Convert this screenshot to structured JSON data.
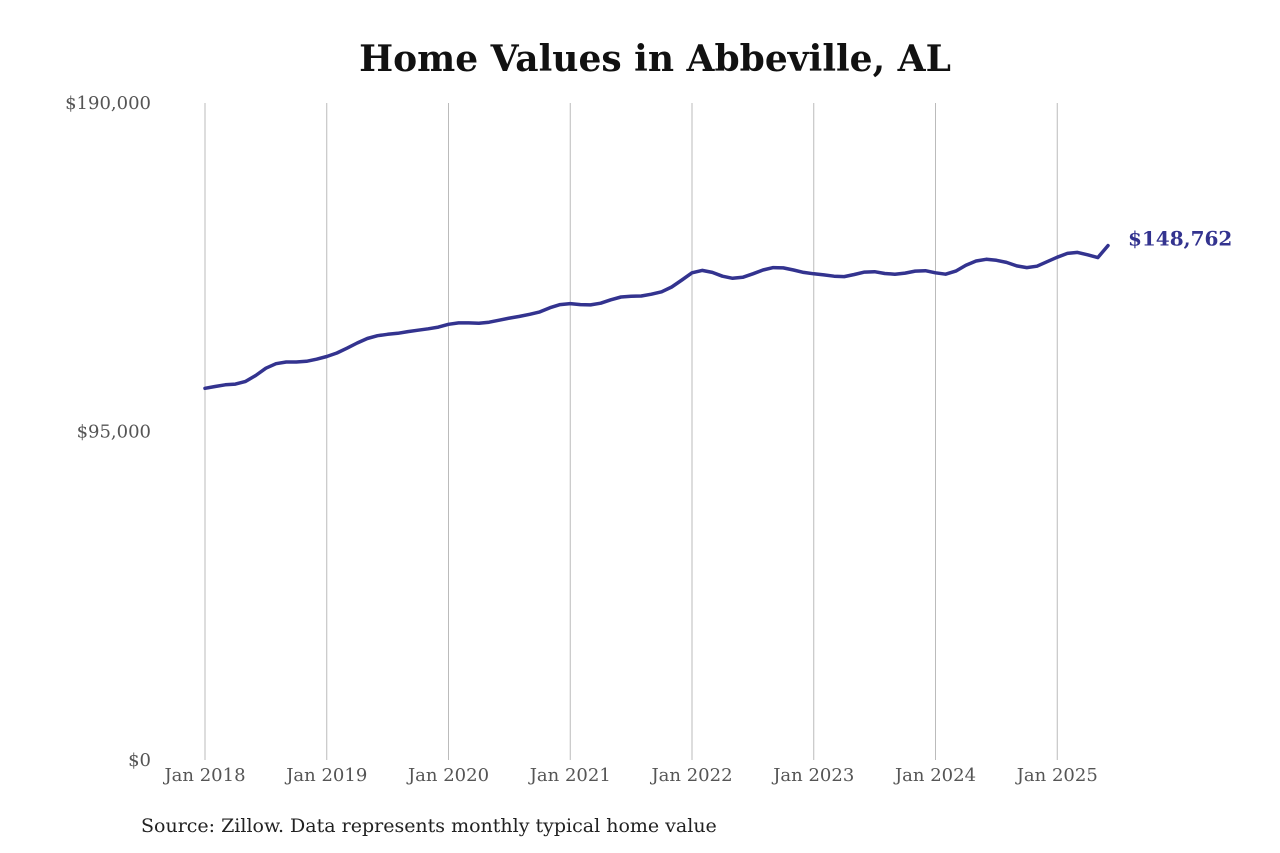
{
  "page": {
    "title": "Home Values in Abbeville, AL",
    "source_note": "Source: Zillow. Data represents monthly typical home value"
  },
  "colors": {
    "line": "#33338f",
    "grid": "#bbbbbb",
    "tick_text": "#555555"
  },
  "chart_data": {
    "type": "line",
    "title": "Home Values in Abbeville, AL",
    "xlabel": "",
    "ylabel": "",
    "ylim": [
      0,
      190000
    ],
    "y_ticks": [
      0,
      95000,
      190000
    ],
    "y_tick_labels": [
      "$0",
      "$95,000",
      "$190,000"
    ],
    "x_ticks": [
      "2018-01",
      "2019-01",
      "2020-01",
      "2021-01",
      "2022-01",
      "2023-01",
      "2024-01",
      "2025-01"
    ],
    "x_tick_labels": [
      "Jan 2018",
      "Jan 2019",
      "Jan 2020",
      "Jan 2021",
      "Jan 2022",
      "Jan 2023",
      "Jan 2024",
      "Jan 2025"
    ],
    "grid": "vertical",
    "end_label": "$148,762",
    "series": [
      {
        "x": [
          "2018-01",
          "2018-02",
          "2018-03",
          "2018-04",
          "2018-05",
          "2018-06",
          "2018-07",
          "2018-08",
          "2018-09",
          "2018-10",
          "2018-11",
          "2018-12",
          "2019-01",
          "2019-02",
          "2019-03",
          "2019-04",
          "2019-05",
          "2019-06",
          "2019-07",
          "2019-08",
          "2019-09",
          "2019-10",
          "2019-11",
          "2019-12",
          "2020-01",
          "2020-02",
          "2020-03",
          "2020-04",
          "2020-05",
          "2020-06",
          "2020-07",
          "2020-08",
          "2020-09",
          "2020-10",
          "2020-11",
          "2020-12",
          "2021-01",
          "2021-02",
          "2021-03",
          "2021-04",
          "2021-05",
          "2021-06",
          "2021-07",
          "2021-08",
          "2021-09",
          "2021-10",
          "2021-11",
          "2021-12",
          "2022-01",
          "2022-02",
          "2022-03",
          "2022-04",
          "2022-05",
          "2022-06",
          "2022-07",
          "2022-08",
          "2022-09",
          "2022-10",
          "2022-11",
          "2022-12",
          "2023-01",
          "2023-02",
          "2023-03",
          "2023-04",
          "2023-05",
          "2023-06",
          "2023-07",
          "2023-08",
          "2023-09",
          "2023-10",
          "2023-11",
          "2023-12",
          "2024-01",
          "2024-02",
          "2024-03",
          "2024-04",
          "2024-05",
          "2024-06",
          "2024-07",
          "2024-08",
          "2024-09",
          "2024-10",
          "2024-11",
          "2024-12",
          "2025-01",
          "2025-02",
          "2025-03",
          "2025-04",
          "2025-05",
          "2025-06"
        ],
        "values": [
          107500,
          108000,
          108500,
          108700,
          109500,
          111200,
          113300,
          114600,
          115100,
          115100,
          115300,
          115900,
          116700,
          117700,
          119100,
          120600,
          121900,
          122700,
          123100,
          123400,
          123900,
          124300,
          124700,
          125200,
          126000,
          126400,
          126400,
          126300,
          126600,
          127200,
          127800,
          128300,
          128900,
          129600,
          130800,
          131700,
          132000,
          131700,
          131600,
          132100,
          133100,
          133900,
          134100,
          134200,
          134700,
          135400,
          136800,
          138800,
          140900,
          141600,
          141000,
          139900,
          139300,
          139600,
          140600,
          141700,
          142400,
          142300,
          141700,
          141000,
          140600,
          140300,
          139900,
          139800,
          140400,
          141100,
          141200,
          140700,
          140500,
          140800,
          141400,
          141500,
          140900,
          140500,
          141400,
          143100,
          144300,
          144800,
          144500,
          143900,
          142900,
          142400,
          142800,
          144100,
          145400,
          146500,
          146800,
          146100,
          145300,
          148762
        ]
      }
    ]
  }
}
